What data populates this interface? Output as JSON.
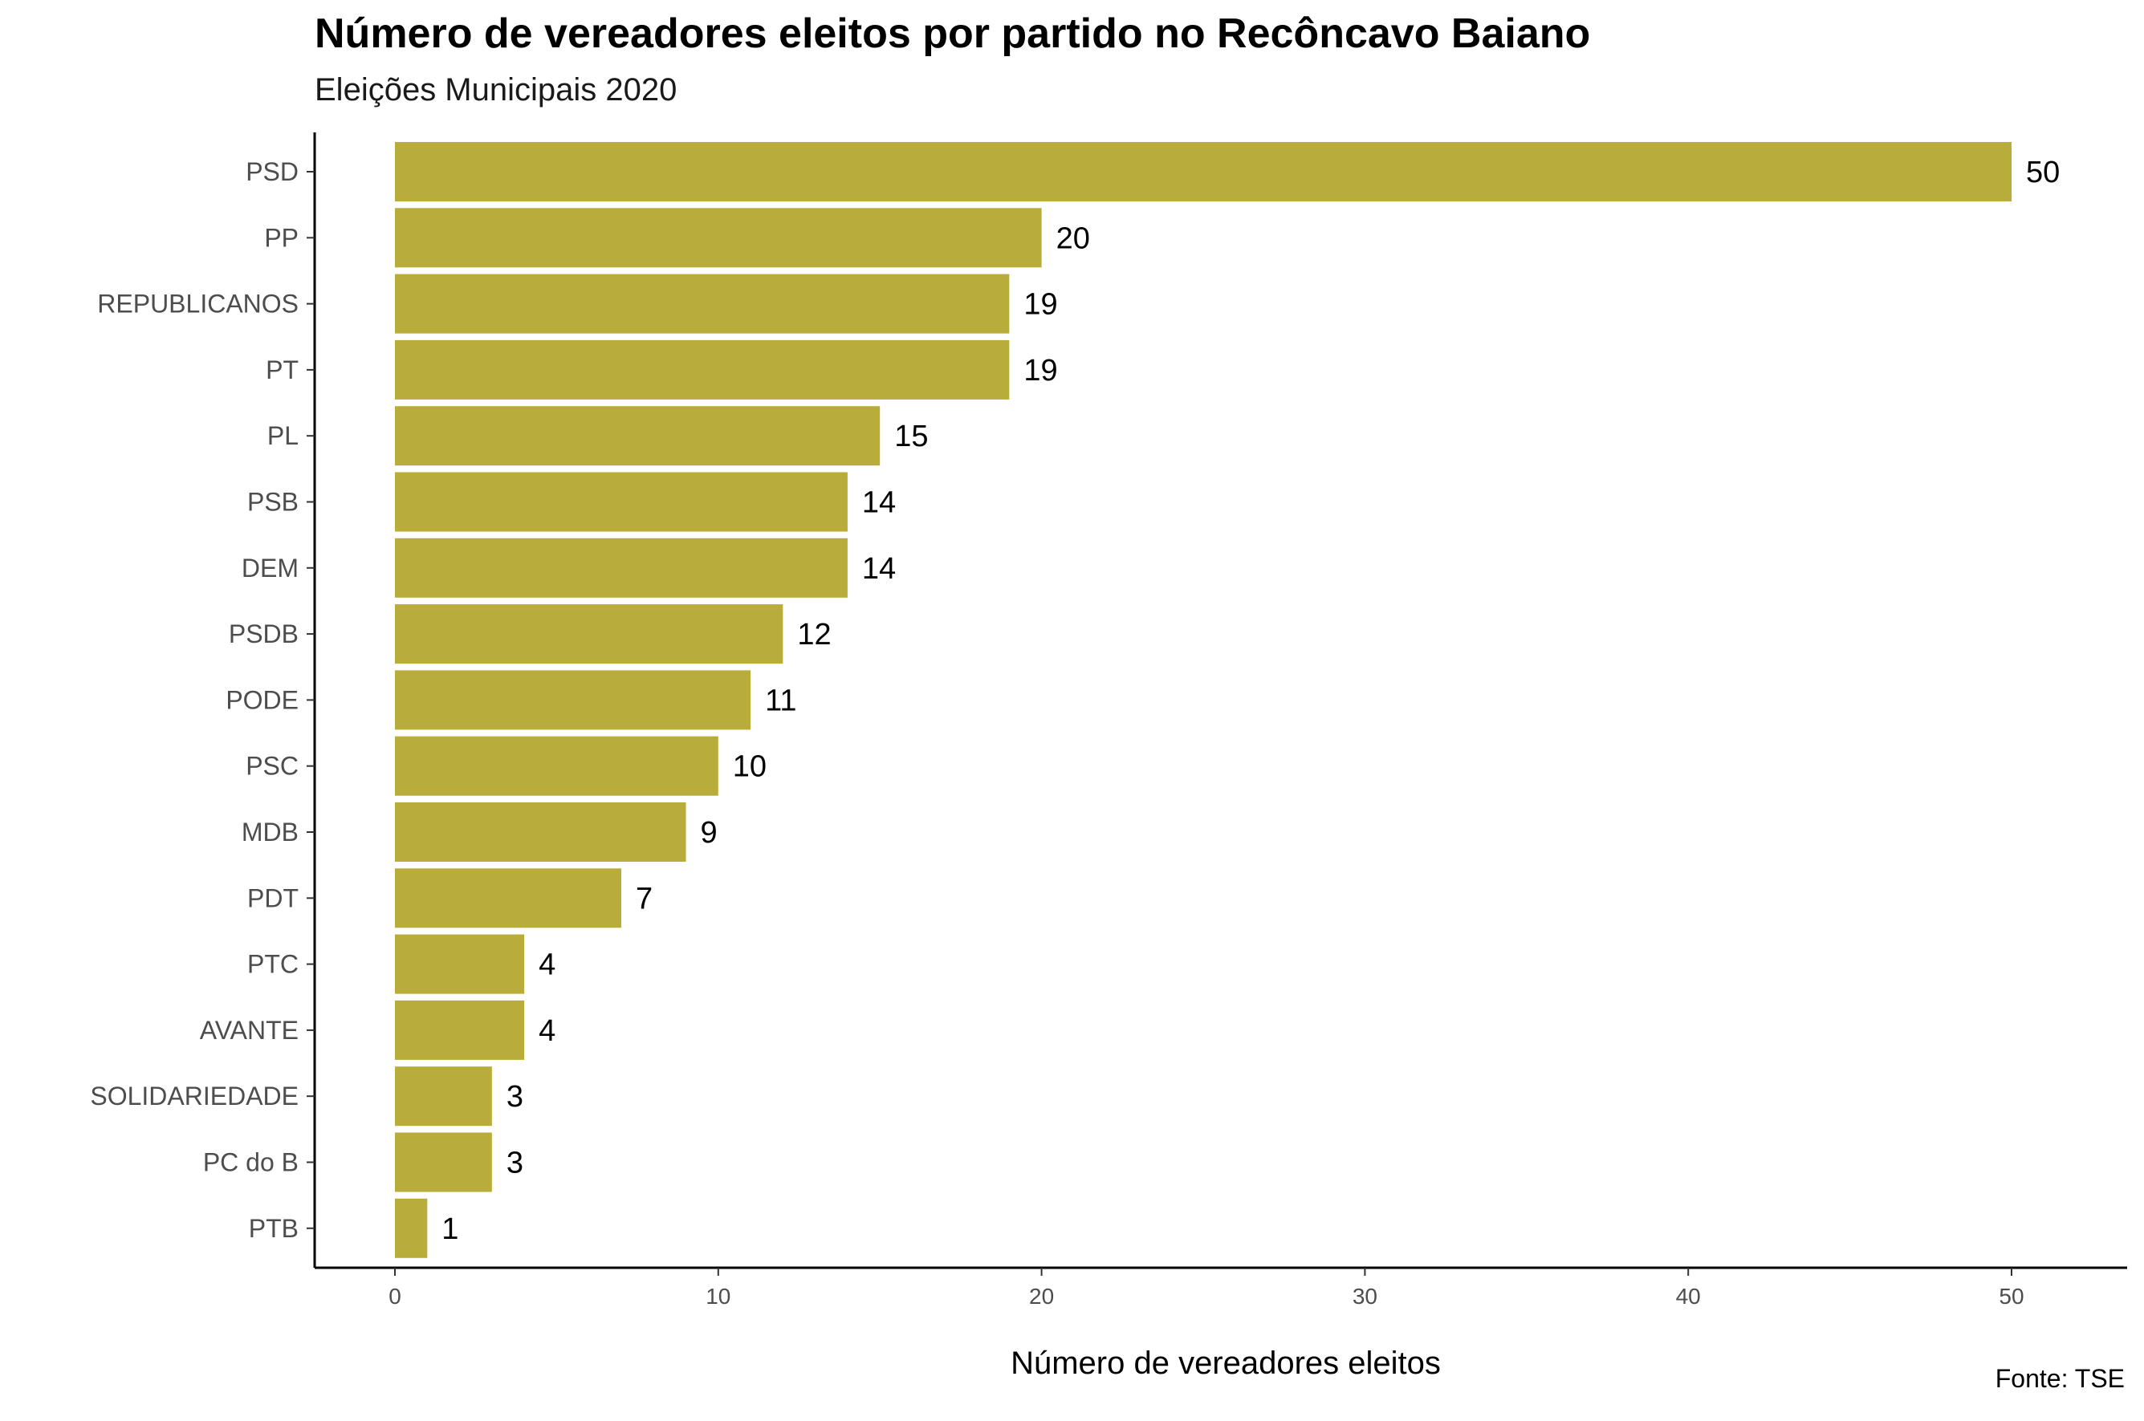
{
  "chart_data": {
    "type": "bar",
    "orientation": "horizontal",
    "title": "Número de vereadores eleitos por partido no Recôncavo Baiano",
    "subtitle": "Eleições Municipais 2020",
    "xlabel": "Número de vereadores eleitos",
    "ylabel": "",
    "caption": "Fonte: TSE",
    "categories": [
      "PSD",
      "PP",
      "REPUBLICANOS",
      "PT",
      "PL",
      "PSB",
      "DEM",
      "PSDB",
      "PODE",
      "PSC",
      "MDB",
      "PDT",
      "PTC",
      "AVANTE",
      "SOLIDARIEDADE",
      "PC do B",
      "PTB"
    ],
    "values": [
      50,
      20,
      19,
      19,
      15,
      14,
      14,
      12,
      11,
      10,
      9,
      7,
      4,
      4,
      3,
      3,
      1
    ],
    "xlim": [
      0,
      50
    ],
    "xticks": [
      0,
      10,
      20,
      30,
      40,
      50
    ],
    "bar_color": "#b8ac3b",
    "grid": false
  }
}
